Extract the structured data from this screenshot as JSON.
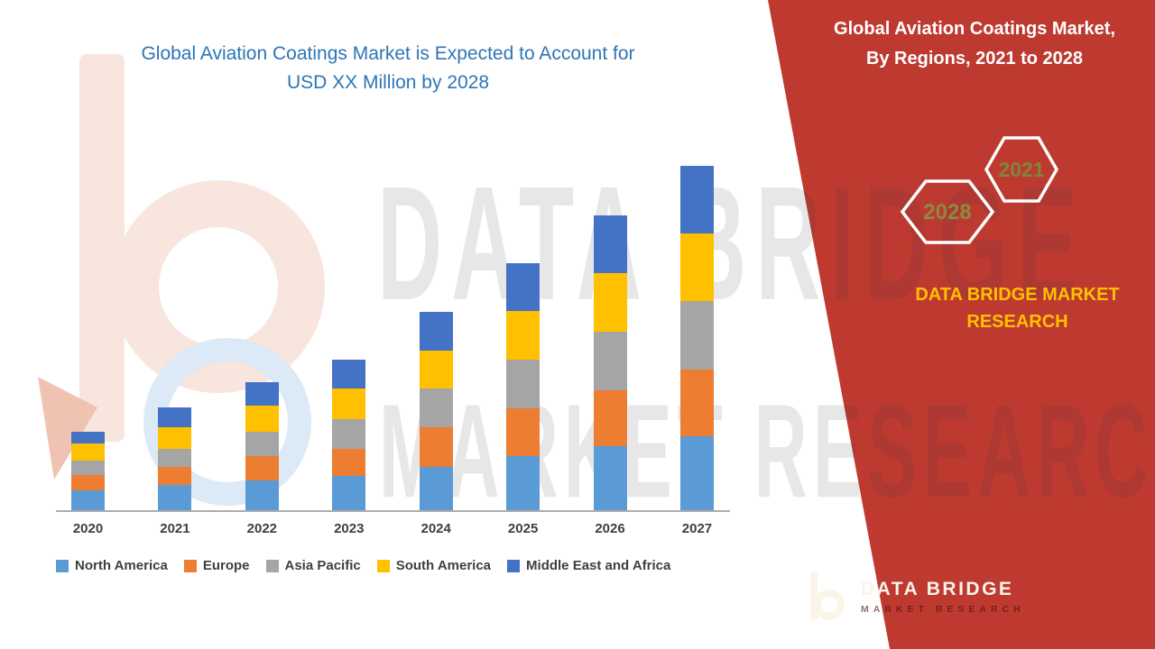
{
  "page": {
    "background": "#FFFFFF"
  },
  "chart": {
    "title_line1": "Global Aviation Coatings Market is Expected to Account for",
    "title_line2": "USD XX Million by 2028",
    "title_color": "#2E75B6"
  },
  "chart_data": {
    "type": "bar",
    "stacked": true,
    "title": "Global Aviation Coatings Market is Expected to Account for USD XX Million by 2028",
    "xlabel": "",
    "ylabel": "",
    "y_axis_labels_visible": false,
    "ylim": [
      0,
      400
    ],
    "grid": false,
    "legend_position": "bottom",
    "note": "No numeric y-axis shown (values masked as USD XX Million); series values are relative units read from bar heights",
    "categories": [
      "2020",
      "2021",
      "2022",
      "2023",
      "2024",
      "2025",
      "2026",
      "2027"
    ],
    "series": [
      {
        "name": "North America",
        "color": "#5B9BD5",
        "values": [
          22,
          28,
          33,
          38,
          48,
          60,
          71,
          82
        ]
      },
      {
        "name": "Europe",
        "color": "#ED7D31",
        "values": [
          17,
          20,
          27,
          30,
          44,
          53,
          62,
          74
        ]
      },
      {
        "name": "Asia Pacific",
        "color": "#A5A5A5",
        "values": [
          16,
          20,
          27,
          33,
          43,
          54,
          65,
          76
        ]
      },
      {
        "name": "South America",
        "color": "#FFC000",
        "values": [
          19,
          24,
          29,
          34,
          42,
          54,
          65,
          75
        ]
      },
      {
        "name": "Middle East and Africa",
        "color": "#4472C4",
        "values": [
          13,
          22,
          26,
          32,
          43,
          53,
          64,
          75
        ]
      }
    ]
  },
  "watermark": {
    "line1": "DATA BRIDGE",
    "line2": "MARKET RESEARCH"
  },
  "panel": {
    "background": "#BE3A31",
    "title_line1": "Global Aviation Coatings Market,",
    "title_line2": "By Regions, 2021 to 2028",
    "hexagons": [
      {
        "label": "2028"
      },
      {
        "label": "2021"
      }
    ],
    "brand_line1": "DATA BRIDGE MARKET",
    "brand_line2": "RESEARCH",
    "brand_color": "#FFC000",
    "footer_logo_text": "DATA BRIDGE",
    "footer_logo_subtext": "MARKET RESEARCH"
  }
}
